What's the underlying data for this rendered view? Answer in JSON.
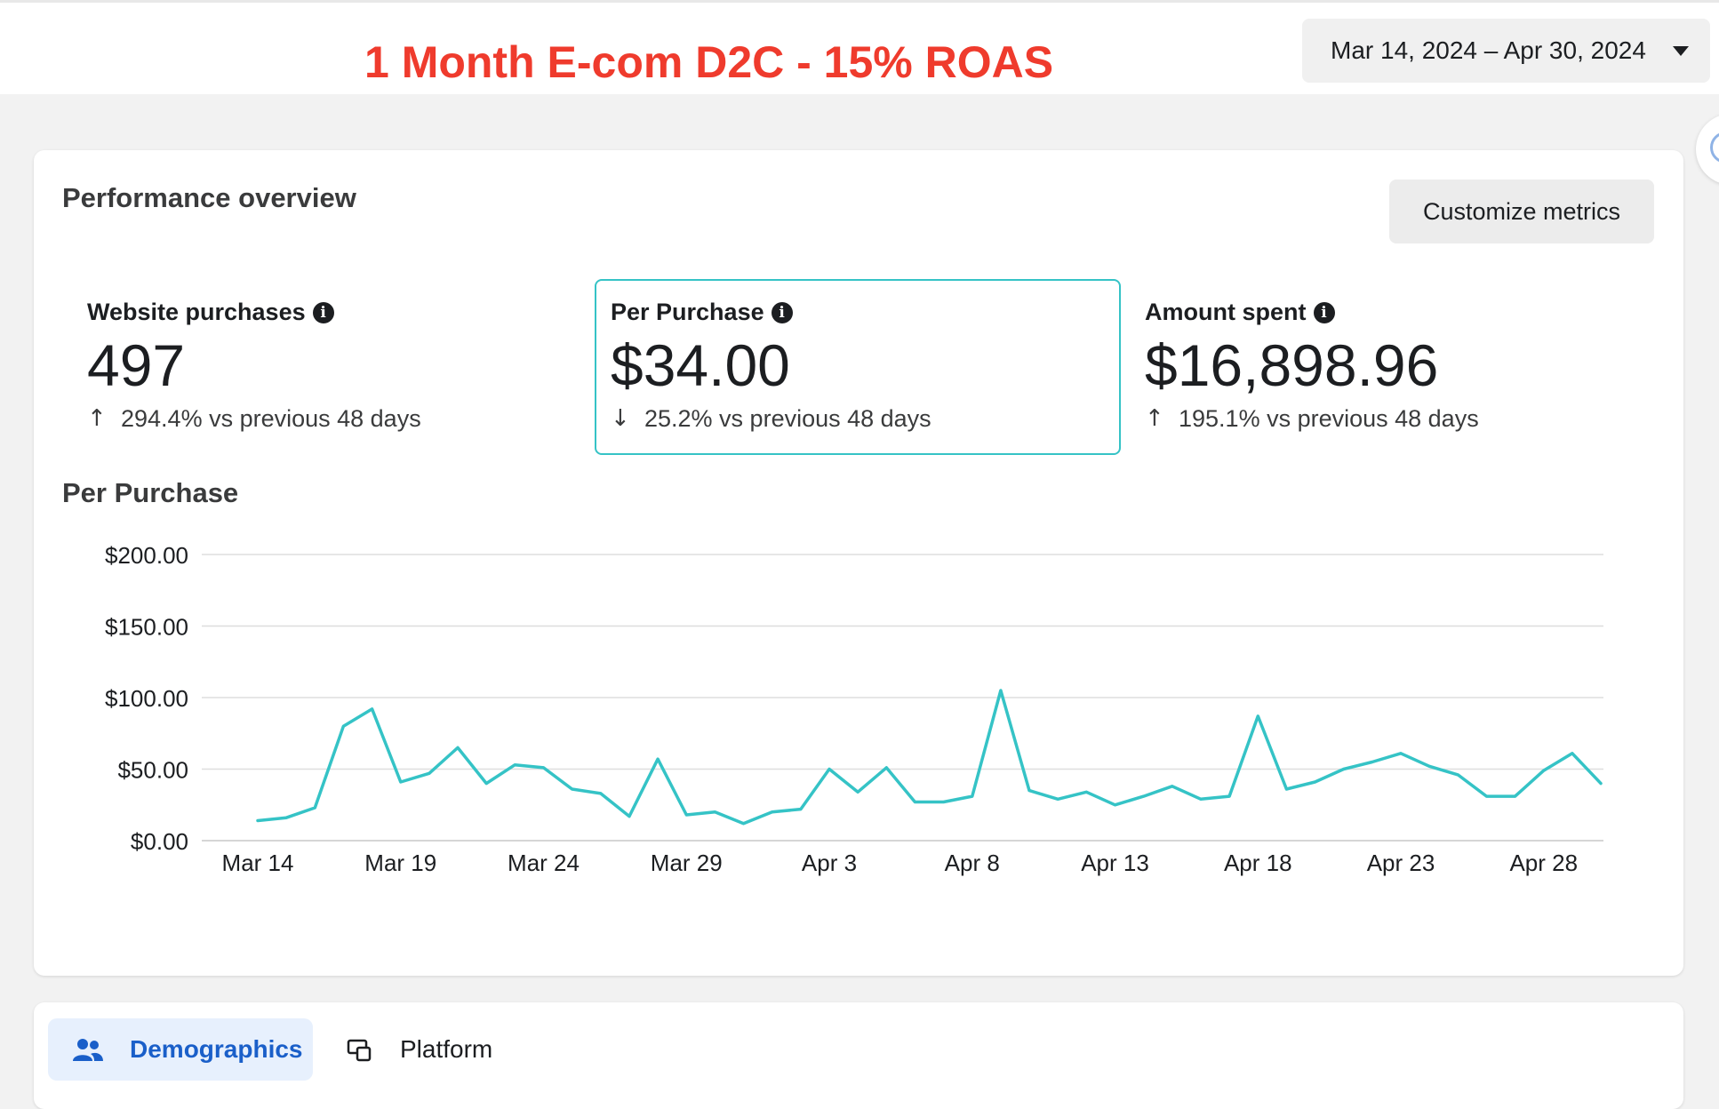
{
  "header": {
    "title": "1 Month E-com D2C - 15% ROAS",
    "date_range": "Mar 14, 2024 – Apr 30, 2024"
  },
  "colors": {
    "accent": "#35c3c6",
    "headline": "#ef3b2d",
    "active_tab": "#1a5fc9"
  },
  "overview": {
    "title": "Performance overview",
    "customize_label": "Customize metrics",
    "metrics": [
      {
        "label": "Website purchases",
        "value": "497",
        "direction": "up",
        "compare": "294.4% vs previous 48 days"
      },
      {
        "label": "Per Purchase",
        "value": "$34.00",
        "direction": "down",
        "compare": "25.2% vs previous 48 days"
      },
      {
        "label": "Amount spent",
        "value": "$16,898.96",
        "direction": "up",
        "compare": "195.1% vs previous 48 days"
      }
    ]
  },
  "chart_title": "Per Purchase",
  "chart_data": {
    "type": "line",
    "title": "Per Purchase",
    "xlabel": "",
    "ylabel": "",
    "ylim": [
      0,
      200
    ],
    "yticks": [
      "$0.00",
      "$50.00",
      "$100.00",
      "$150.00",
      "$200.00"
    ],
    "xticks": [
      "Mar 14",
      "Mar 19",
      "Mar 24",
      "Mar 29",
      "Apr 3",
      "Apr 8",
      "Apr 13",
      "Apr 18",
      "Apr 23",
      "Apr 28"
    ],
    "grid": true,
    "color": "#35c3c6",
    "x": [
      "2024-03-14",
      "2024-03-15",
      "2024-03-16",
      "2024-03-17",
      "2024-03-18",
      "2024-03-19",
      "2024-03-20",
      "2024-03-21",
      "2024-03-22",
      "2024-03-23",
      "2024-03-24",
      "2024-03-25",
      "2024-03-26",
      "2024-03-27",
      "2024-03-28",
      "2024-03-29",
      "2024-03-30",
      "2024-03-31",
      "2024-04-01",
      "2024-04-02",
      "2024-04-03",
      "2024-04-04",
      "2024-04-05",
      "2024-04-06",
      "2024-04-07",
      "2024-04-08",
      "2024-04-09",
      "2024-04-10",
      "2024-04-11",
      "2024-04-12",
      "2024-04-13",
      "2024-04-14",
      "2024-04-15",
      "2024-04-16",
      "2024-04-17",
      "2024-04-18",
      "2024-04-19",
      "2024-04-20",
      "2024-04-21",
      "2024-04-22",
      "2024-04-23",
      "2024-04-24",
      "2024-04-25",
      "2024-04-26",
      "2024-04-27",
      "2024-04-28",
      "2024-04-29",
      "2024-04-30"
    ],
    "values": [
      14,
      16,
      23,
      80,
      92,
      41,
      47,
      65,
      40,
      53,
      51,
      36,
      33,
      17,
      57,
      18,
      20,
      12,
      20,
      22,
      50,
      34,
      51,
      27,
      27,
      31,
      105,
      35,
      29,
      34,
      25,
      31,
      38,
      29,
      31,
      87,
      36,
      41,
      50,
      55,
      61,
      52,
      46,
      31,
      31,
      49,
      61,
      40
    ]
  },
  "tabs": [
    {
      "label": "Demographics",
      "icon": "people-icon",
      "active": true
    },
    {
      "label": "Platform",
      "icon": "devices-icon",
      "active": false
    }
  ]
}
